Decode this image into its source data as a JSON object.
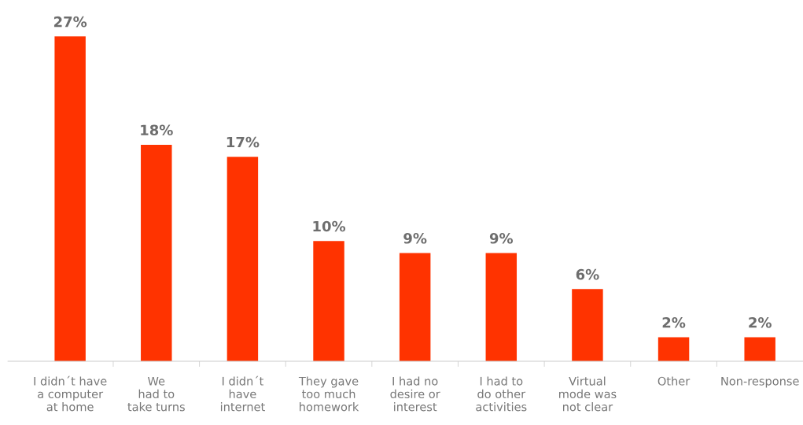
{
  "chart_data": {
    "type": "bar",
    "categories": [
      "I didn´t have\na computer\nat home",
      "We\nhad to\ntake turns",
      "I didn´t\nhave\ninternet",
      "They gave\ntoo much\nhomework",
      "I had no\ndesire or\ninterest",
      "I had to\ndo other\nactivities",
      "Virtual\nmode was\nnot clear",
      "Other",
      "Non-response"
    ],
    "values": [
      27,
      18,
      17,
      10,
      9,
      9,
      6,
      2,
      2
    ],
    "value_labels": [
      "27%",
      "18%",
      "17%",
      "10%",
      "9%",
      "9%",
      "6%",
      "2%",
      "2%"
    ],
    "color": "#ff3300",
    "grid": false,
    "legend": false
  }
}
